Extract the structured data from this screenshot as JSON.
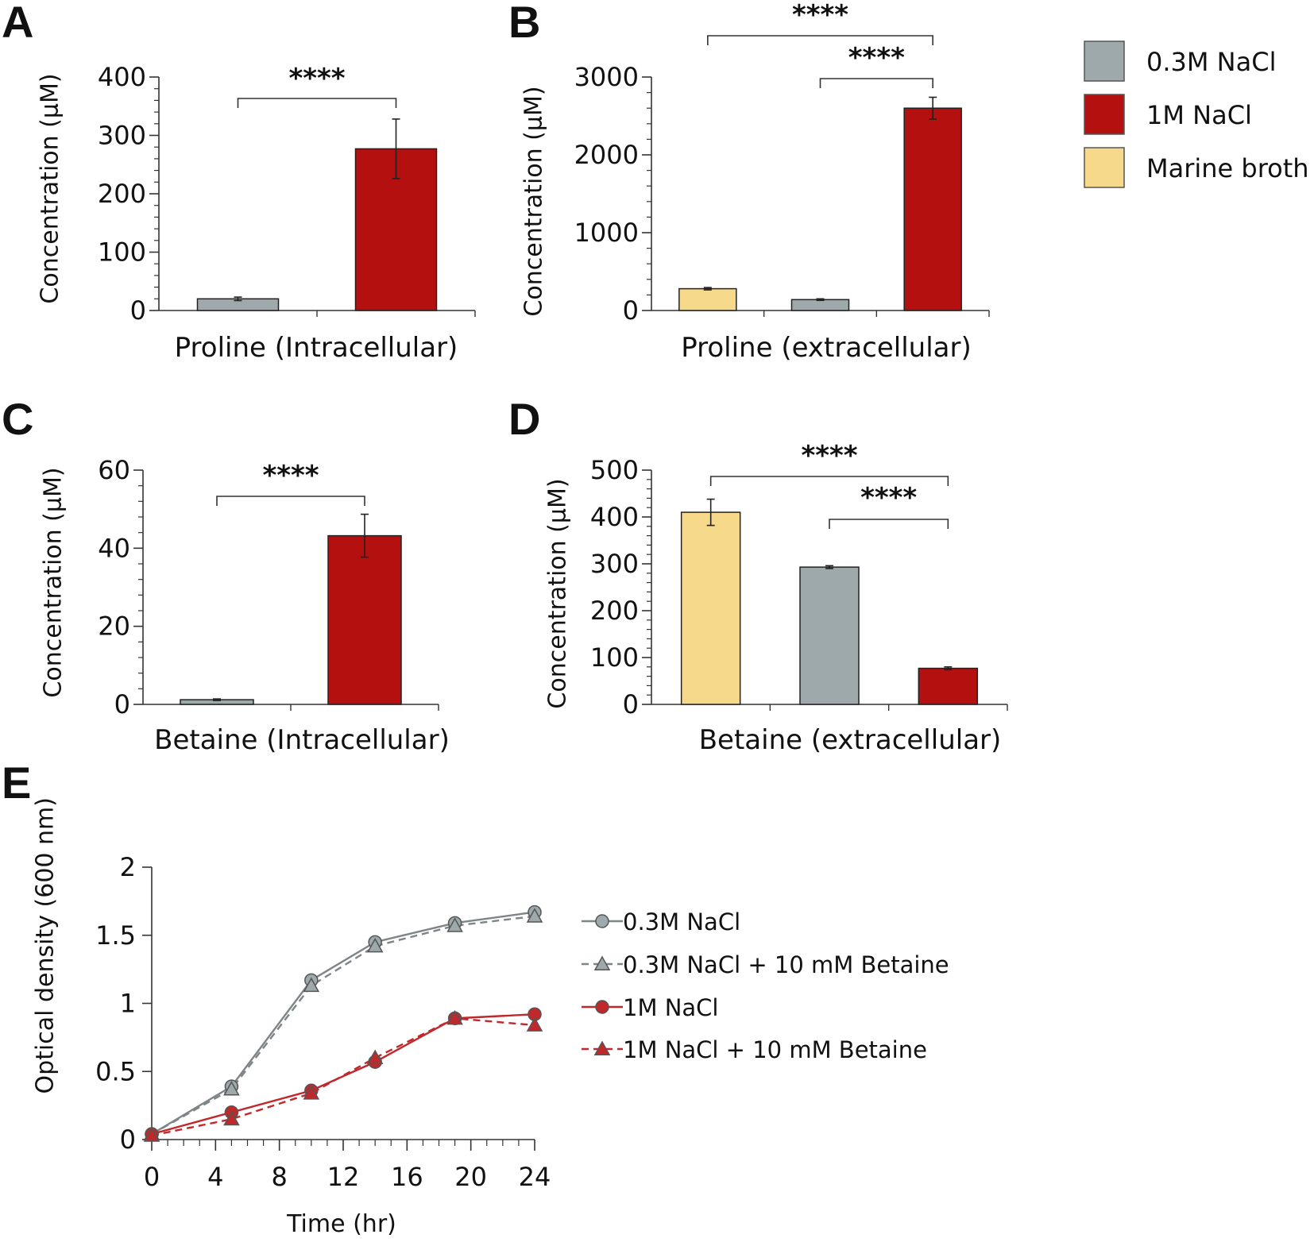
{
  "panels": {
    "A": "A",
    "B": "B",
    "C": "C",
    "D": "D",
    "E": "E"
  },
  "colors": {
    "nacl_03": "#9ea9ab",
    "nacl_1": "#b3100f",
    "marine": "#f6d98b",
    "line_03": "#7f8587",
    "line_1": "#c0292b"
  },
  "legend_top": [
    {
      "label": "0.3M NaCl",
      "color": "#9ea9ab"
    },
    {
      "label": "1M NaCl",
      "color": "#b3100f"
    },
    {
      "label": "Marine broth",
      "color": "#f6d98b"
    }
  ],
  "chart_data": [
    {
      "id": "A",
      "type": "bar",
      "xlabel": "Proline (Intracellular)",
      "ylabel": "Concentration (µM)",
      "ylim": [
        0,
        400
      ],
      "yticks": [
        "0",
        "100",
        "200",
        "300",
        "400"
      ],
      "bars": [
        {
          "series": "0.3M NaCl",
          "value": 20,
          "error": 3
        },
        {
          "series": "1M NaCl",
          "value": 277,
          "error": 51
        }
      ],
      "significance": [
        {
          "from": 0,
          "to": 1,
          "label": "****"
        }
      ]
    },
    {
      "id": "B",
      "type": "bar",
      "xlabel": "Proline (extracellular)",
      "ylabel": "Concentration (µM)",
      "ylim": [
        0,
        3000
      ],
      "yticks": [
        "0",
        "1000",
        "2000",
        "3000"
      ],
      "bars": [
        {
          "series": "Marine broth",
          "value": 280,
          "error": 15
        },
        {
          "series": "0.3M NaCl",
          "value": 140,
          "error": 10
        },
        {
          "series": "1M NaCl",
          "value": 2600,
          "error": 140
        }
      ],
      "significance": [
        {
          "from": 0,
          "to": 2,
          "label": "****"
        },
        {
          "from": 1,
          "to": 2,
          "label": "****"
        }
      ]
    },
    {
      "id": "C",
      "type": "bar",
      "xlabel": "Betaine (Intracellular)",
      "ylabel": "Concentration (µM)",
      "ylim": [
        0,
        60
      ],
      "yticks": [
        "0",
        "20",
        "40",
        "60"
      ],
      "bars": [
        {
          "series": "0.3M NaCl",
          "value": 1.2,
          "error": 0.2
        },
        {
          "series": "1M NaCl",
          "value": 43.2,
          "error": 5.5
        }
      ],
      "significance": [
        {
          "from": 0,
          "to": 1,
          "label": "****"
        }
      ]
    },
    {
      "id": "D",
      "type": "bar",
      "xlabel": "Betaine (extracellular)",
      "ylabel": "Concentration (µM)",
      "ylim": [
        0,
        500
      ],
      "yticks": [
        "0",
        "100",
        "200",
        "300",
        "400",
        "500"
      ],
      "bars": [
        {
          "series": "Marine broth",
          "value": 410,
          "error": 28
        },
        {
          "series": "0.3M NaCl",
          "value": 293,
          "error": 3
        },
        {
          "series": "1M NaCl",
          "value": 77,
          "error": 3
        }
      ],
      "significance": [
        {
          "from": 0,
          "to": 2,
          "label": "****"
        },
        {
          "from": 1,
          "to": 2,
          "label": "****"
        }
      ]
    },
    {
      "id": "E",
      "type": "line",
      "xlabel": "Time (hr)",
      "ylabel": "Optical density (600 nm)",
      "xlim": [
        0,
        24
      ],
      "ylim": [
        0,
        2
      ],
      "xticks": [
        "0",
        "4",
        "8",
        "12",
        "16",
        "20",
        "24"
      ],
      "yticks": [
        "0",
        "0.5",
        "1",
        "1.5",
        "2"
      ],
      "x": [
        0,
        5,
        10,
        14,
        19,
        24
      ],
      "series": [
        {
          "name": "0.3M NaCl",
          "values": [
            0.04,
            0.39,
            1.17,
            1.45,
            1.59,
            1.67
          ],
          "marker": "circle",
          "dashed": false,
          "color": "#7f8587",
          "fill": "#9ea9ab"
        },
        {
          "name": "0.3M NaCl + 10 mM Betaine",
          "values": [
            0.04,
            0.37,
            1.13,
            1.42,
            1.57,
            1.64
          ],
          "marker": "triangle",
          "dashed": true,
          "color": "#7f8587",
          "fill": "#9ea9ab"
        },
        {
          "name": "1M NaCl",
          "values": [
            0.04,
            0.2,
            0.36,
            0.57,
            0.89,
            0.92
          ],
          "marker": "circle",
          "dashed": false,
          "color": "#c0292b",
          "fill": "#c0292b"
        },
        {
          "name": "1M NaCl + 10 mM Betaine",
          "values": [
            0.03,
            0.15,
            0.34,
            0.6,
            0.89,
            0.84
          ],
          "marker": "triangle",
          "dashed": true,
          "color": "#c0292b",
          "fill": "#c0292b"
        }
      ]
    }
  ]
}
